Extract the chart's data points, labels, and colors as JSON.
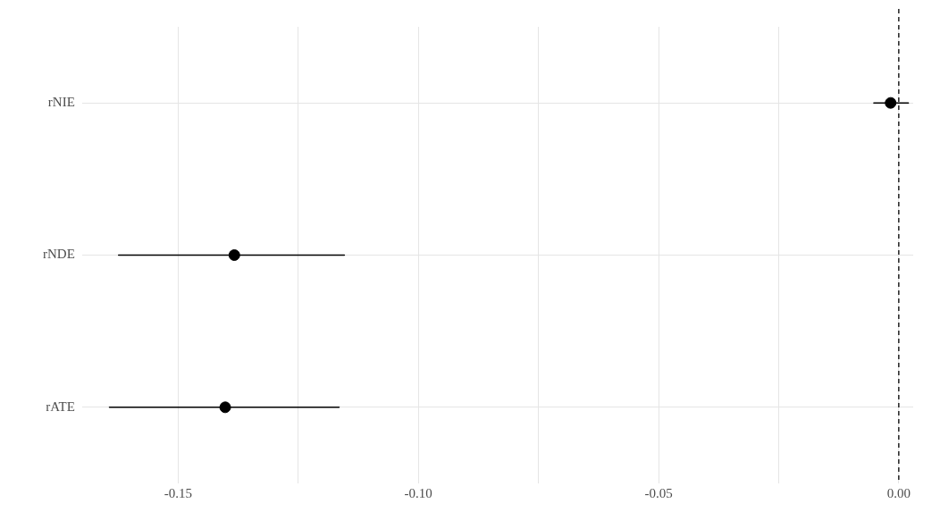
{
  "chart_data": {
    "type": "scatter",
    "orientation": "horizontal",
    "categories": [
      "rNIE",
      "rNDE",
      "rATE"
    ],
    "values": [
      -0.0017,
      -0.1383,
      -0.1402
    ],
    "errors": [
      [
        -0.0052,
        0.002
      ],
      [
        -0.1624,
        -0.1154
      ],
      [
        -0.1643,
        -0.1165
      ]
    ],
    "color": "#000000",
    "marker": "circle",
    "xlim": [
      -0.17,
      0.003
    ],
    "xticks": [
      {
        "value": -0.15,
        "label": "-0.15"
      },
      {
        "value": -0.125,
        "label": null
      },
      {
        "value": -0.1,
        "label": "-0.10"
      },
      {
        "value": -0.075,
        "label": null
      },
      {
        "value": -0.05,
        "label": "-0.05"
      },
      {
        "value": -0.025,
        "label": null
      },
      {
        "value": 0,
        "label": "0.00"
      }
    ],
    "grid": true,
    "ref_lines": [
      {
        "axis": "x",
        "value": 0,
        "line_style": "dashed",
        "color": "#000000"
      }
    ]
  }
}
